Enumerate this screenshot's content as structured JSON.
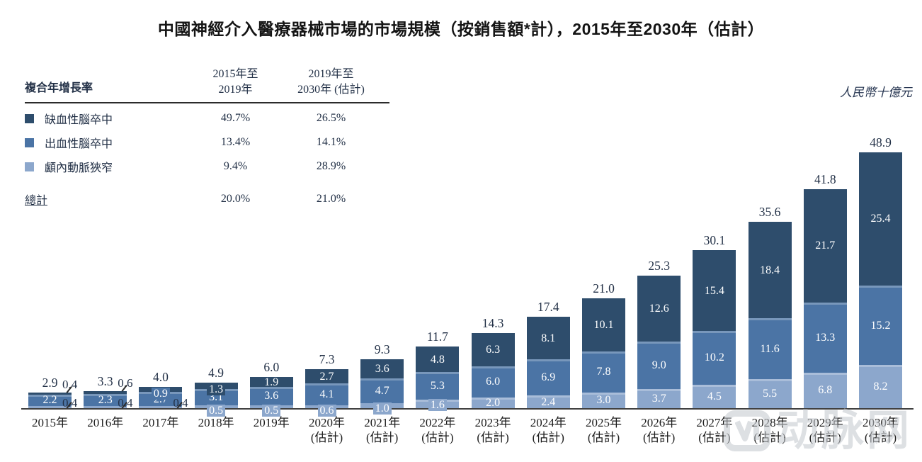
{
  "title": "中國神經介入醫療器械市場的市場規模（按銷售額*計），2015年至2030年（估計）",
  "unit_label": "人民幣十億元",
  "watermark": {
    "text": "动脉网"
  },
  "colors": {
    "ischemic": "#2e4d6c",
    "hemorrhagic": "#4b74a5",
    "stenosis": "#8ca7cc",
    "axis": "#414141"
  },
  "legend_table": {
    "header": {
      "label": "複合年增長率",
      "col1_line1": "2015年至",
      "col1_line2": "2019年",
      "col2_line1": "2019年至",
      "col2_line2": "2030年 (估計)"
    },
    "rows": [
      {
        "name": "缺血性腦卒中",
        "cagr_2015_2019": "49.7%",
        "cagr_2019_2030": "26.5%",
        "color": "#2e4d6c"
      },
      {
        "name": "出血性腦卒中",
        "cagr_2015_2019": "13.4%",
        "cagr_2019_2030": "14.1%",
        "color": "#4b74a5"
      },
      {
        "name": "顱內動脈狹窄",
        "cagr_2015_2019": "9.4%",
        "cagr_2019_2030": "28.9%",
        "color": "#8ca7cc"
      }
    ],
    "total_row": {
      "name": "總計",
      "cagr_2015_2019": "20.0%",
      "cagr_2019_2030": "21.0%"
    }
  },
  "chart_data": {
    "type": "bar",
    "subtype": "stacked",
    "title": "中國神經介入醫療器械市場的市場規模（按銷售額*計），2015年至2030年（估計）",
    "ylabel": "人民幣十億元",
    "legend_position": "top-left",
    "grid": false,
    "series_top_to_bottom": [
      "缺血性腦卒中",
      "出血性腦卒中",
      "顱內動脈狹窄"
    ],
    "years": [
      {
        "label": "2015年",
        "sublabel": "",
        "total": 2.9,
        "ischemic": 0.4,
        "hemorrhagic": 2.2,
        "stenosis": 0.4
      },
      {
        "label": "2016年",
        "sublabel": "",
        "total": 3.3,
        "ischemic": 0.6,
        "hemorrhagic": 2.3,
        "stenosis": 0.4
      },
      {
        "label": "2017年",
        "sublabel": "",
        "total": 4.0,
        "ischemic": 0.9,
        "hemorrhagic": 2.7,
        "stenosis": 0.4
      },
      {
        "label": "2018年",
        "sublabel": "",
        "total": 4.9,
        "ischemic": 1.3,
        "hemorrhagic": 3.1,
        "stenosis": 0.5
      },
      {
        "label": "2019年",
        "sublabel": "",
        "total": 6.0,
        "ischemic": 1.9,
        "hemorrhagic": 3.6,
        "stenosis": 0.5
      },
      {
        "label": "2020年",
        "sublabel": "(估計)",
        "total": 7.3,
        "ischemic": 2.7,
        "hemorrhagic": 4.1,
        "stenosis": 0.6
      },
      {
        "label": "2021年",
        "sublabel": "(估計)",
        "total": 9.3,
        "ischemic": 3.6,
        "hemorrhagic": 4.7,
        "stenosis": 1.0
      },
      {
        "label": "2022年",
        "sublabel": "(估計)",
        "total": 11.7,
        "ischemic": 4.8,
        "hemorrhagic": 5.3,
        "stenosis": 1.6
      },
      {
        "label": "2023年",
        "sublabel": "(估計)",
        "total": 14.3,
        "ischemic": 6.3,
        "hemorrhagic": 6.0,
        "stenosis": 2.0
      },
      {
        "label": "2024年",
        "sublabel": "(估計)",
        "total": 17.4,
        "ischemic": 8.1,
        "hemorrhagic": 6.9,
        "stenosis": 2.4
      },
      {
        "label": "2025年",
        "sublabel": "(估計)",
        "total": 21.0,
        "ischemic": 10.1,
        "hemorrhagic": 7.8,
        "stenosis": 3.0
      },
      {
        "label": "2026年",
        "sublabel": "(估計)",
        "total": 25.3,
        "ischemic": 12.6,
        "hemorrhagic": 9.0,
        "stenosis": 3.7
      },
      {
        "label": "2027年",
        "sublabel": "(估計)",
        "total": 30.1,
        "ischemic": 15.4,
        "hemorrhagic": 10.2,
        "stenosis": 4.5
      },
      {
        "label": "2028年",
        "sublabel": "(估計)",
        "total": 35.6,
        "ischemic": 18.4,
        "hemorrhagic": 11.6,
        "stenosis": 5.5
      },
      {
        "label": "2029年",
        "sublabel": "(估計)",
        "total": 41.8,
        "ischemic": 21.7,
        "hemorrhagic": 13.3,
        "stenosis": 6.8
      },
      {
        "label": "2030年",
        "sublabel": "(估計)",
        "total": 48.9,
        "ischemic": 25.4,
        "hemorrhagic": 15.2,
        "stenosis": 8.2
      }
    ]
  }
}
